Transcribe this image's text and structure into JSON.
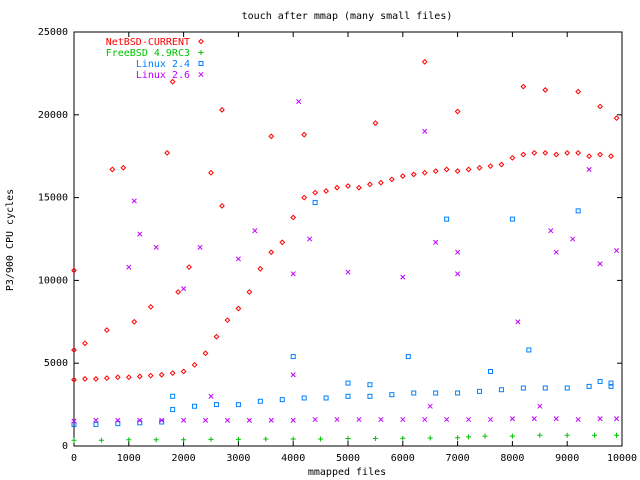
{
  "chart_data": {
    "type": "scatter",
    "title": "touch after mmap (many small files)",
    "xlabel": "mmapped files",
    "ylabel": "P3/900 CPU cycles",
    "xlim": [
      0,
      10000
    ],
    "ylim": [
      0,
      25000
    ],
    "xticks": [
      0,
      1000,
      2000,
      3000,
      4000,
      5000,
      6000,
      7000,
      8000,
      9000,
      10000
    ],
    "yticks": [
      0,
      5000,
      10000,
      15000,
      20000,
      25000
    ],
    "grid": false,
    "legend_position": "top-left",
    "series": [
      {
        "name": "NetBSD-CURRENT",
        "color": "#ff0000",
        "marker": "diamond",
        "points": [
          [
            0,
            4000
          ],
          [
            200,
            4050
          ],
          [
            400,
            4050
          ],
          [
            600,
            4100
          ],
          [
            800,
            4150
          ],
          [
            1000,
            4150
          ],
          [
            1200,
            4200
          ],
          [
            1400,
            4250
          ],
          [
            1600,
            4300
          ],
          [
            1800,
            4400
          ],
          [
            2000,
            4500
          ],
          [
            2200,
            4900
          ],
          [
            2400,
            5600
          ],
          [
            2600,
            6600
          ],
          [
            2800,
            7600
          ],
          [
            3000,
            8300
          ],
          [
            3200,
            9300
          ],
          [
            3400,
            10700
          ],
          [
            3600,
            11700
          ],
          [
            3800,
            12300
          ],
          [
            4000,
            13800
          ],
          [
            4200,
            15000
          ],
          [
            4400,
            15300
          ],
          [
            4600,
            15400
          ],
          [
            4800,
            15600
          ],
          [
            5000,
            15700
          ],
          [
            5200,
            15600
          ],
          [
            5400,
            15800
          ],
          [
            5600,
            15900
          ],
          [
            5800,
            16100
          ],
          [
            6000,
            16300
          ],
          [
            6200,
            16400
          ],
          [
            6400,
            16500
          ],
          [
            6600,
            16600
          ],
          [
            6800,
            16700
          ],
          [
            7000,
            16600
          ],
          [
            7200,
            16700
          ],
          [
            7400,
            16800
          ],
          [
            7600,
            16900
          ],
          [
            7800,
            17000
          ],
          [
            8000,
            17400
          ],
          [
            8200,
            17600
          ],
          [
            8400,
            17700
          ],
          [
            8600,
            17700
          ],
          [
            8800,
            17600
          ],
          [
            9000,
            17700
          ],
          [
            9200,
            17700
          ],
          [
            9400,
            17500
          ],
          [
            9600,
            17600
          ],
          [
            9800,
            17500
          ],
          [
            0,
            5800
          ],
          [
            0,
            10600
          ],
          [
            200,
            6200
          ],
          [
            600,
            7000
          ],
          [
            700,
            16700
          ],
          [
            900,
            16800
          ],
          [
            1100,
            7500
          ],
          [
            1400,
            8400
          ],
          [
            1700,
            17700
          ],
          [
            1800,
            22000
          ],
          [
            1900,
            9300
          ],
          [
            2100,
            10800
          ],
          [
            2500,
            16500
          ],
          [
            2700,
            14500
          ],
          [
            2700,
            20300
          ],
          [
            3600,
            18700
          ],
          [
            4200,
            18800
          ],
          [
            5500,
            19500
          ],
          [
            6400,
            23200
          ],
          [
            7000,
            20200
          ],
          [
            8200,
            21700
          ],
          [
            8600,
            21500
          ],
          [
            9200,
            21400
          ],
          [
            9600,
            20500
          ],
          [
            9900,
            19800
          ]
        ]
      },
      {
        "name": "FreeBSD 4.9RC3",
        "color": "#00c000",
        "marker": "plus",
        "points": [
          [
            0,
            350
          ],
          [
            500,
            350
          ],
          [
            1000,
            380
          ],
          [
            1500,
            380
          ],
          [
            2000,
            380
          ],
          [
            2500,
            400
          ],
          [
            3000,
            400
          ],
          [
            3500,
            420
          ],
          [
            4000,
            420
          ],
          [
            4500,
            420
          ],
          [
            5000,
            450
          ],
          [
            5500,
            450
          ],
          [
            6000,
            470
          ],
          [
            6500,
            480
          ],
          [
            7000,
            500
          ],
          [
            7200,
            550
          ],
          [
            7500,
            600
          ],
          [
            8000,
            600
          ],
          [
            8500,
            650
          ],
          [
            9000,
            650
          ],
          [
            9500,
            650
          ],
          [
            9900,
            650
          ]
        ]
      },
      {
        "name": "Linux 2.4",
        "color": "#0080ff",
        "marker": "square",
        "points": [
          [
            0,
            1300
          ],
          [
            400,
            1300
          ],
          [
            800,
            1350
          ],
          [
            1200,
            1400
          ],
          [
            1600,
            1450
          ],
          [
            1800,
            2200
          ],
          [
            2200,
            2400
          ],
          [
            2600,
            2500
          ],
          [
            3000,
            2500
          ],
          [
            3400,
            2700
          ],
          [
            3800,
            2800
          ],
          [
            4200,
            2900
          ],
          [
            4600,
            2900
          ],
          [
            5000,
            3000
          ],
          [
            5400,
            3000
          ],
          [
            5800,
            3100
          ],
          [
            6200,
            3200
          ],
          [
            6600,
            3200
          ],
          [
            7000,
            3200
          ],
          [
            7400,
            3300
          ],
          [
            7800,
            3400
          ],
          [
            8200,
            3500
          ],
          [
            8600,
            3500
          ],
          [
            9000,
            3500
          ],
          [
            9400,
            3600
          ],
          [
            9800,
            3600
          ],
          [
            1800,
            3000
          ],
          [
            4000,
            5400
          ],
          [
            4400,
            14700
          ],
          [
            5000,
            3800
          ],
          [
            5400,
            3700
          ],
          [
            6100,
            5400
          ],
          [
            6800,
            13700
          ],
          [
            7600,
            4500
          ],
          [
            8000,
            13700
          ],
          [
            8300,
            5800
          ],
          [
            9200,
            14200
          ],
          [
            9600,
            3900
          ],
          [
            9800,
            3800
          ]
        ]
      },
      {
        "name": "Linux 2.6",
        "color": "#c000ff",
        "marker": "cross",
        "points": [
          [
            0,
            1500
          ],
          [
            400,
            1550
          ],
          [
            800,
            1550
          ],
          [
            1200,
            1550
          ],
          [
            1600,
            1550
          ],
          [
            2000,
            1550
          ],
          [
            2400,
            1550
          ],
          [
            2800,
            1550
          ],
          [
            3200,
            1550
          ],
          [
            3600,
            1550
          ],
          [
            4000,
            1550
          ],
          [
            4400,
            1600
          ],
          [
            4800,
            1600
          ],
          [
            5200,
            1600
          ],
          [
            5600,
            1600
          ],
          [
            6000,
            1600
          ],
          [
            6400,
            1600
          ],
          [
            6800,
            1600
          ],
          [
            7200,
            1600
          ],
          [
            7600,
            1600
          ],
          [
            8000,
            1650
          ],
          [
            8400,
            1650
          ],
          [
            8800,
            1650
          ],
          [
            9200,
            1600
          ],
          [
            9600,
            1650
          ],
          [
            9900,
            1650
          ],
          [
            1000,
            10800
          ],
          [
            1100,
            14800
          ],
          [
            1200,
            12800
          ],
          [
            1500,
            12000
          ],
          [
            2000,
            9500
          ],
          [
            2300,
            12000
          ],
          [
            3000,
            11300
          ],
          [
            3300,
            13000
          ],
          [
            4000,
            10400
          ],
          [
            4100,
            20800
          ],
          [
            4300,
            12500
          ],
          [
            5000,
            10500
          ],
          [
            6000,
            10200
          ],
          [
            6400,
            19000
          ],
          [
            6600,
            12300
          ],
          [
            7000,
            10400
          ],
          [
            7000,
            11700
          ],
          [
            8100,
            7500
          ],
          [
            8700,
            13000
          ],
          [
            8800,
            11700
          ],
          [
            9100,
            12500
          ],
          [
            9400,
            16700
          ],
          [
            9600,
            11000
          ],
          [
            9900,
            11800
          ],
          [
            2500,
            3000
          ],
          [
            4000,
            4300
          ],
          [
            6500,
            2400
          ],
          [
            8500,
            2400
          ]
        ]
      }
    ]
  }
}
